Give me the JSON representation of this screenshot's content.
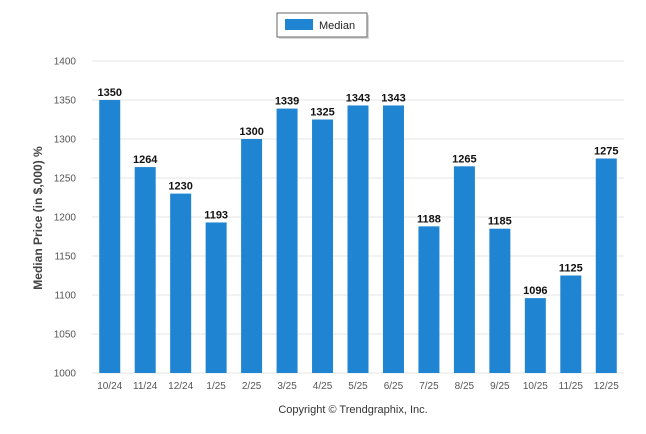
{
  "chart_data": {
    "type": "bar",
    "categories": [
      "10/24",
      "11/24",
      "12/24",
      "1/25",
      "2/25",
      "3/25",
      "4/25",
      "5/25",
      "6/25",
      "7/25",
      "8/25",
      "9/25",
      "10/25",
      "11/25",
      "12/25"
    ],
    "series": [
      {
        "name": "Median",
        "color": "#1f85d3",
        "values": [
          1350,
          1264,
          1230,
          1193,
          1300,
          1339,
          1325,
          1343,
          1343,
          1188,
          1265,
          1185,
          1096,
          1125,
          1275
        ]
      }
    ],
    "ylabel": "Median Price (in $,000) %",
    "xlabel": "",
    "ylim": [
      1000,
      1400
    ],
    "yticks": [
      1000,
      1050,
      1100,
      1150,
      1200,
      1250,
      1300,
      1350,
      1400
    ],
    "grid": true,
    "legend": "top-center",
    "data_labels": true
  },
  "footer": {
    "copyright": "Copyright © Trendgraphix, Inc."
  }
}
